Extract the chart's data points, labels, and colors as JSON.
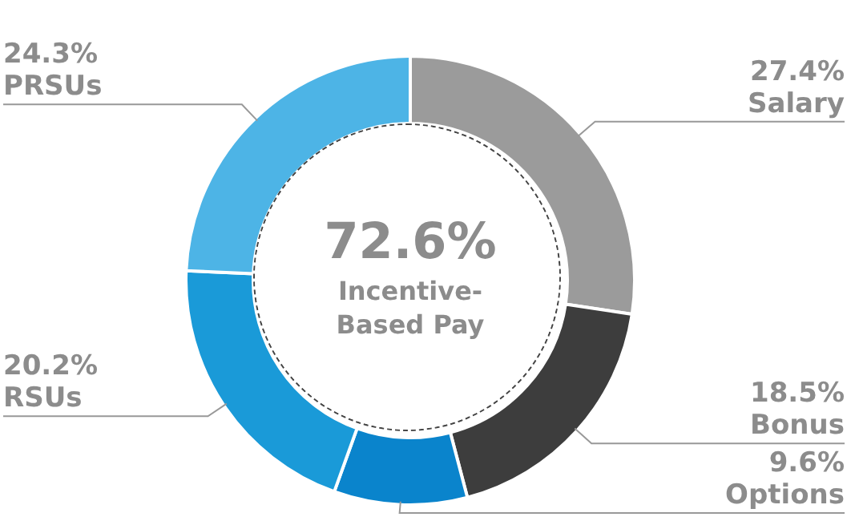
{
  "chart_data": {
    "type": "donut",
    "categories": [
      "Salary",
      "Bonus",
      "Options",
      "RSUs",
      "PRSUs"
    ],
    "values": [
      27.4,
      18.5,
      9.6,
      20.2,
      24.3
    ],
    "value_labels": [
      "27.4%",
      "18.5%",
      "9.6%",
      "20.2%",
      "24.3%"
    ],
    "colors": [
      "#9b9b9b",
      "#3d3d3d",
      "#0a84cc",
      "#1a9ad8",
      "#4db4e6"
    ],
    "annotations": [
      "72.6%",
      "Incentive-Based Pay"
    ],
    "legend": false
  }
}
